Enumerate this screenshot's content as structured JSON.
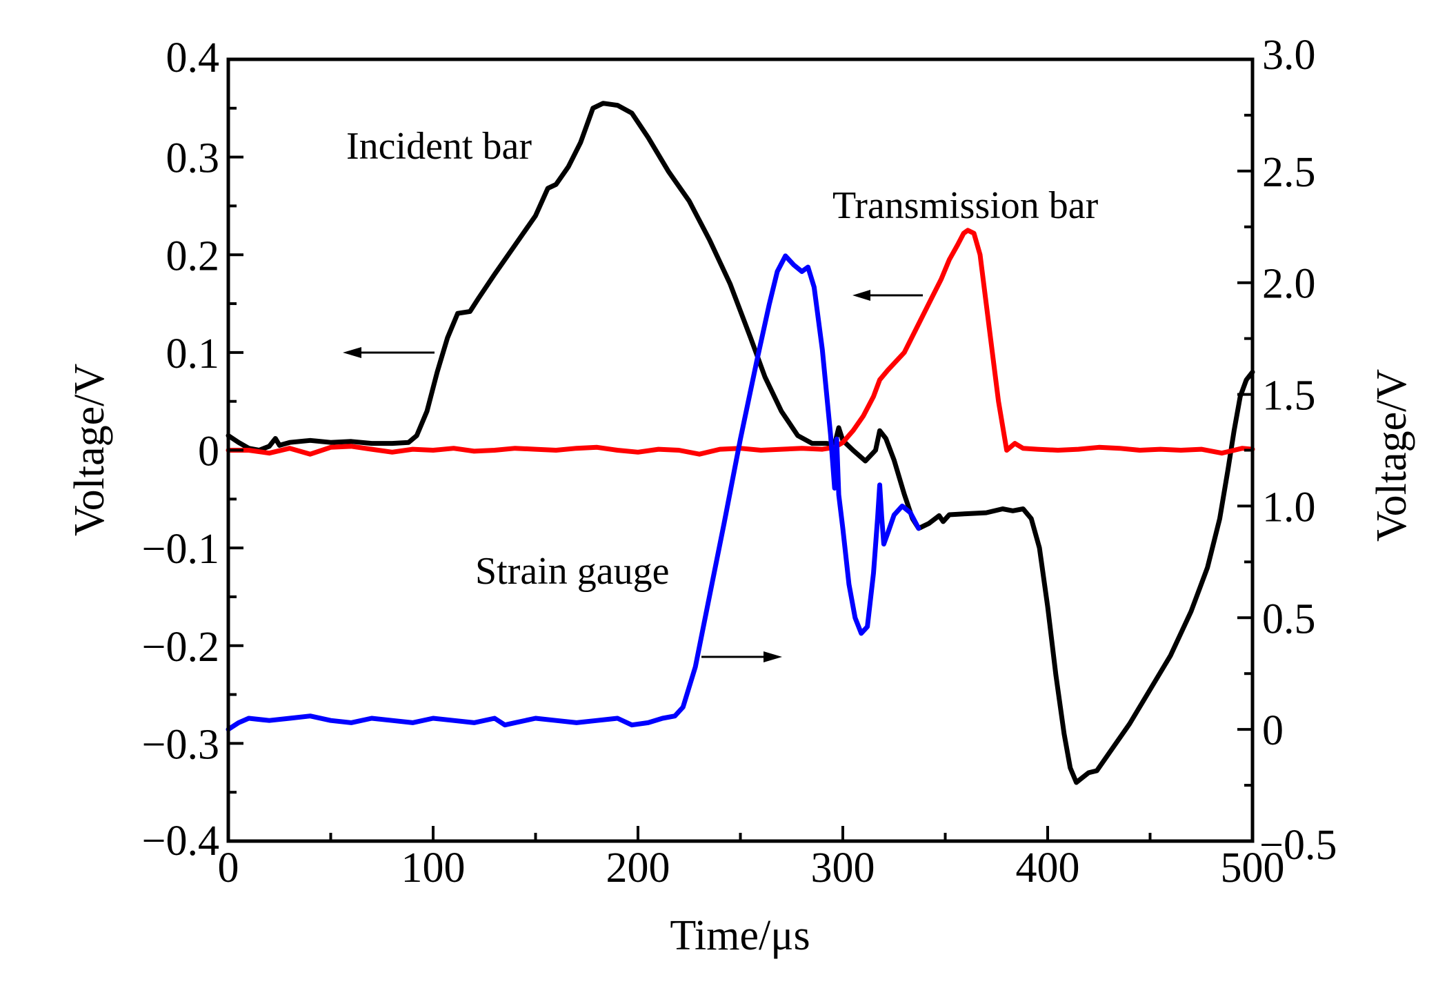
{
  "chart_data": {
    "type": "line",
    "title": "",
    "xlabel": "Time/μs",
    "ylabel": "Voltage/V",
    "y2label": "Voltage/V",
    "xlim": [
      0,
      500
    ],
    "ylim": [
      -0.4,
      0.4
    ],
    "y2lim": [
      -0.5,
      3.0
    ],
    "grid": false,
    "legend": "none",
    "x_ticks": [
      "0",
      "100",
      "200",
      "300",
      "400",
      "500"
    ],
    "x_tick_values": [
      0,
      100,
      200,
      300,
      400,
      500
    ],
    "y_ticks": [
      "0.4",
      "0.3",
      "0.2",
      "0.1",
      "0",
      "−0.1",
      "−0.2",
      "−0.3",
      "−0.4"
    ],
    "y_tick_values": [
      0.4,
      0.3,
      0.2,
      0.1,
      0,
      -0.1,
      -0.2,
      -0.3,
      -0.4
    ],
    "y2_ticks": [
      "3.0",
      "2.5",
      "2.0",
      "1.5",
      "1.0",
      "0.5",
      "0",
      "−0.5"
    ],
    "y2_tick_values": [
      3.0,
      2.5,
      2.0,
      1.5,
      1.0,
      0.5,
      0,
      -0.5
    ],
    "series": [
      {
        "name": "Incident bar",
        "axis": "left",
        "color": "#000000",
        "x": [
          0,
          5,
          10,
          15,
          20,
          23,
          25,
          30,
          40,
          50,
          60,
          70,
          80,
          88,
          92,
          97,
          102,
          107,
          112,
          118,
          122,
          130,
          140,
          150,
          156,
          160,
          166,
          172,
          178,
          183,
          190,
          197,
          205,
          215,
          225,
          235,
          245,
          255,
          262,
          270,
          278,
          285,
          292,
          296,
          298,
          300,
          305,
          311,
          316,
          318,
          321,
          325,
          330,
          334,
          337,
          342,
          347,
          349,
          352,
          360,
          370,
          378,
          383,
          388,
          392,
          396,
          400,
          404,
          408,
          411,
          414,
          417,
          420,
          424,
          430,
          440,
          450,
          460,
          470,
          478,
          484,
          488,
          491,
          494,
          497,
          500
        ],
        "y": [
          0.015,
          0.008,
          0.002,
          0.0,
          0.004,
          0.012,
          0.005,
          0.008,
          0.01,
          0.008,
          0.009,
          0.007,
          0.007,
          0.008,
          0.015,
          0.04,
          0.08,
          0.115,
          0.14,
          0.142,
          0.155,
          0.18,
          0.21,
          0.24,
          0.268,
          0.272,
          0.29,
          0.315,
          0.35,
          0.355,
          0.353,
          0.345,
          0.32,
          0.285,
          0.255,
          0.215,
          0.17,
          0.115,
          0.075,
          0.04,
          0.015,
          0.007,
          0.007,
          0.006,
          0.023,
          0.01,
          0.0,
          -0.011,
          0.0,
          0.02,
          0.012,
          -0.01,
          -0.045,
          -0.07,
          -0.08,
          -0.075,
          -0.067,
          -0.073,
          -0.066,
          -0.065,
          -0.064,
          -0.06,
          -0.062,
          -0.06,
          -0.07,
          -0.1,
          -0.16,
          -0.23,
          -0.29,
          -0.325,
          -0.34,
          -0.335,
          -0.33,
          -0.328,
          -0.31,
          -0.28,
          -0.245,
          -0.21,
          -0.165,
          -0.12,
          -0.07,
          -0.02,
          0.02,
          0.055,
          0.072,
          0.08
        ]
      },
      {
        "name": "Transmission bar",
        "axis": "left",
        "color": "#ff0000",
        "x": [
          0,
          10,
          20,
          30,
          40,
          50,
          60,
          70,
          80,
          90,
          100,
          110,
          120,
          130,
          140,
          150,
          160,
          170,
          180,
          190,
          200,
          210,
          220,
          230,
          240,
          250,
          260,
          270,
          280,
          290,
          296,
          300,
          305,
          310,
          315,
          318,
          322,
          330,
          336,
          342,
          348,
          352,
          356,
          359,
          361,
          364,
          367,
          370,
          373,
          376,
          380,
          384,
          388,
          395,
          405,
          415,
          425,
          435,
          445,
          455,
          465,
          475,
          485,
          495,
          500
        ],
        "y": [
          0.0,
          0.0,
          -0.003,
          0.002,
          -0.004,
          0.003,
          0.004,
          0.001,
          -0.002,
          0.001,
          0.0,
          0.002,
          -0.001,
          0.0,
          0.002,
          0.001,
          0.0,
          0.002,
          0.003,
          0.0,
          -0.002,
          0.001,
          0.0,
          -0.004,
          0.001,
          0.002,
          0.0,
          0.001,
          0.002,
          0.001,
          0.003,
          0.008,
          0.02,
          0.035,
          0.055,
          0.072,
          0.082,
          0.1,
          0.125,
          0.15,
          0.175,
          0.195,
          0.21,
          0.222,
          0.225,
          0.222,
          0.2,
          0.15,
          0.1,
          0.05,
          0.0,
          0.007,
          0.002,
          0.001,
          0.0,
          0.001,
          0.003,
          0.002,
          0.0,
          0.001,
          0.0,
          0.001,
          -0.003,
          0.002,
          0.001
        ]
      },
      {
        "name": "Strain gauge",
        "axis": "right",
        "color": "#0000ff",
        "x": [
          0,
          5,
          10,
          20,
          30,
          40,
          50,
          60,
          70,
          80,
          90,
          100,
          110,
          120,
          130,
          135,
          140,
          150,
          160,
          170,
          180,
          190,
          197,
          205,
          212,
          218,
          222,
          228,
          235,
          242,
          250,
          258,
          264,
          268,
          272,
          276,
          280,
          283,
          286,
          290,
          294,
          296,
          297,
          298,
          300,
          303,
          306,
          309,
          312,
          315,
          317,
          318,
          319,
          320,
          322,
          325,
          329,
          333,
          337
        ],
        "y": [
          0.0,
          0.03,
          0.05,
          0.04,
          0.05,
          0.06,
          0.04,
          0.03,
          0.05,
          0.04,
          0.03,
          0.05,
          0.04,
          0.03,
          0.05,
          0.02,
          0.03,
          0.05,
          0.04,
          0.03,
          0.04,
          0.05,
          0.02,
          0.03,
          0.05,
          0.06,
          0.1,
          0.28,
          0.6,
          0.92,
          1.3,
          1.65,
          1.9,
          2.05,
          2.12,
          2.08,
          2.05,
          2.07,
          1.98,
          1.7,
          1.32,
          1.08,
          1.3,
          1.05,
          0.9,
          0.65,
          0.5,
          0.43,
          0.46,
          0.7,
          0.95,
          1.095,
          0.95,
          0.83,
          0.88,
          0.96,
          1.0,
          0.97,
          0.9
        ]
      }
    ],
    "annotations": [
      {
        "text": "Incident bar",
        "arrow": "left",
        "points_to_axis": "left"
      },
      {
        "text": "Transmission bar",
        "arrow": "left",
        "points_to_axis": "left"
      },
      {
        "text": "Strain gauge",
        "arrow": "right",
        "points_to_axis": "right"
      }
    ]
  }
}
